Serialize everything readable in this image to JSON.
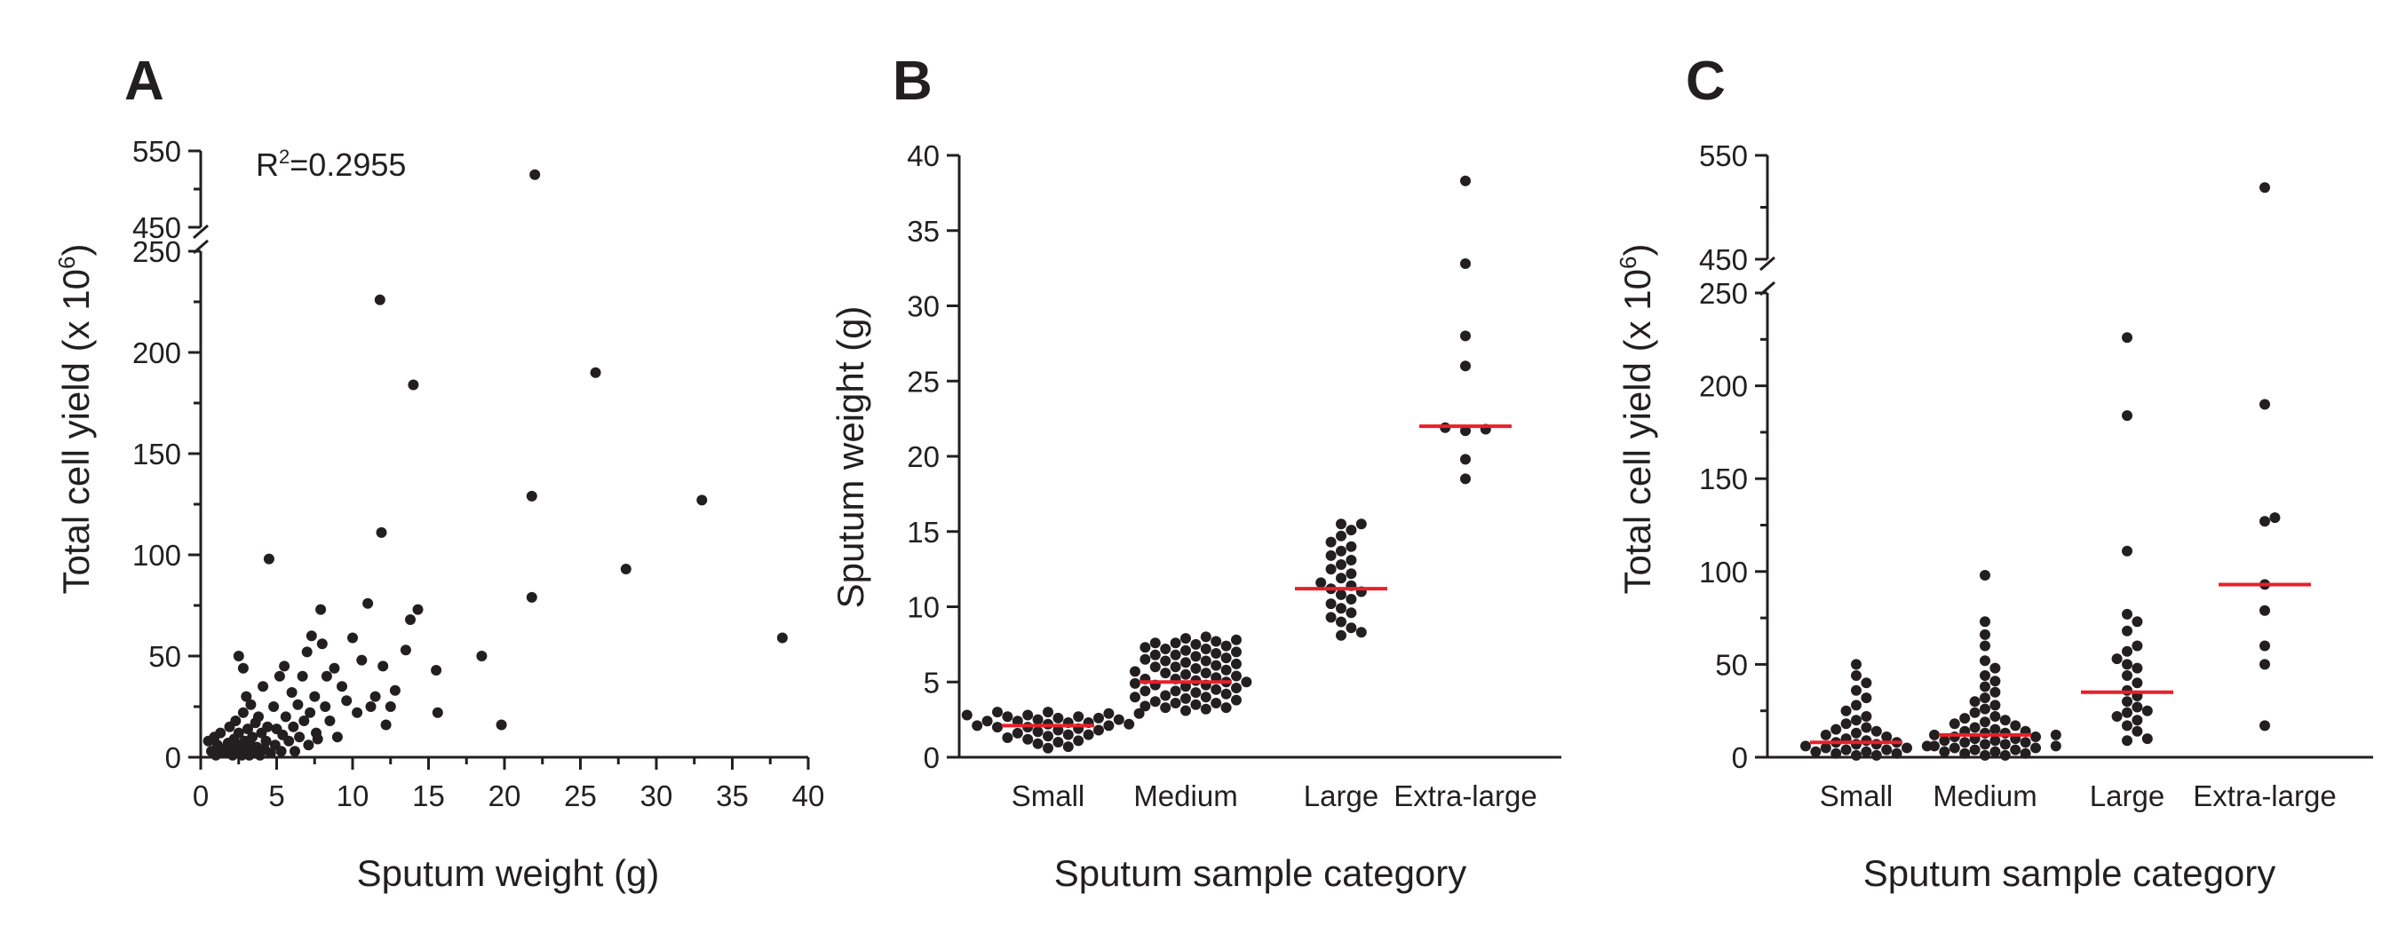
{
  "panels": [
    {
      "letter": "A"
    },
    {
      "letter": "B"
    },
    {
      "letter": "C"
    }
  ],
  "chart_data": [
    {
      "type": "scatter",
      "panel": "A",
      "xlabel": "Sputum weight (g)",
      "ylabel": "Total cell yield (x 10^6)",
      "ylabel_parts": {
        "main": "Total cell yield (x 10",
        "sup": "6",
        "close": ")"
      },
      "annotation": "R²=0.2955",
      "annotation_parts": {
        "pre": "R",
        "sup": "2",
        "post": "=0.2955"
      },
      "xlim": [
        0,
        40
      ],
      "ylim_lower": [
        0,
        250
      ],
      "ylim_upper": [
        450,
        550
      ],
      "broken_axis": true,
      "x_ticks": [
        0,
        5,
        10,
        15,
        20,
        25,
        30,
        35,
        40
      ],
      "y_ticks_lower": [
        0,
        50,
        100,
        150,
        200,
        250
      ],
      "y_ticks_upper": [
        450,
        550
      ],
      "grid": false,
      "points": [
        [
          0.5,
          8
        ],
        [
          0.7,
          3
        ],
        [
          0.9,
          10
        ],
        [
          1.0,
          1
        ],
        [
          1.1,
          6
        ],
        [
          1.3,
          12
        ],
        [
          1.4,
          4
        ],
        [
          1.6,
          2
        ],
        [
          1.8,
          7
        ],
        [
          1.9,
          15
        ],
        [
          2.0,
          5
        ],
        [
          2.1,
          1
        ],
        [
          2.2,
          9
        ],
        [
          2.3,
          18
        ],
        [
          2.4,
          3
        ],
        [
          2.5,
          50
        ],
        [
          2.5,
          12
        ],
        [
          2.6,
          6
        ],
        [
          2.7,
          1
        ],
        [
          2.8,
          44
        ],
        [
          2.8,
          22
        ],
        [
          2.9,
          8
        ],
        [
          3.0,
          30
        ],
        [
          3.0,
          3
        ],
        [
          3.1,
          14
        ],
        [
          3.2,
          1
        ],
        [
          3.3,
          26
        ],
        [
          3.3,
          6
        ],
        [
          3.4,
          10
        ],
        [
          3.5,
          2
        ],
        [
          3.6,
          17
        ],
        [
          3.7,
          5
        ],
        [
          3.8,
          20
        ],
        [
          3.9,
          1
        ],
        [
          4.0,
          12
        ],
        [
          4.1,
          35
        ],
        [
          4.2,
          4
        ],
        [
          4.3,
          8
        ],
        [
          4.4,
          15
        ],
        [
          4.5,
          98
        ],
        [
          4.6,
          2
        ],
        [
          4.8,
          25
        ],
        [
          4.9,
          6
        ],
        [
          5.0,
          14
        ],
        [
          5.2,
          40
        ],
        [
          5.3,
          3
        ],
        [
          5.4,
          11
        ],
        [
          5.5,
          45
        ],
        [
          5.6,
          20
        ],
        [
          5.8,
          8
        ],
        [
          6.0,
          32
        ],
        [
          6.1,
          15
        ],
        [
          6.2,
          3
        ],
        [
          6.4,
          26
        ],
        [
          6.5,
          10
        ],
        [
          6.7,
          40
        ],
        [
          6.8,
          18
        ],
        [
          7.0,
          52
        ],
        [
          7.1,
          6
        ],
        [
          7.2,
          22
        ],
        [
          7.3,
          60
        ],
        [
          7.5,
          30
        ],
        [
          7.6,
          12
        ],
        [
          7.7,
          9
        ],
        [
          7.9,
          73
        ],
        [
          8.0,
          56
        ],
        [
          8.2,
          25
        ],
        [
          8.3,
          40
        ],
        [
          8.5,
          18
        ],
        [
          8.8,
          44
        ],
        [
          9.0,
          10
        ],
        [
          9.3,
          35
        ],
        [
          9.6,
          28
        ],
        [
          10.0,
          59
        ],
        [
          10.3,
          22
        ],
        [
          10.6,
          48
        ],
        [
          11.0,
          76
        ],
        [
          11.2,
          25
        ],
        [
          11.5,
          30
        ],
        [
          11.8,
          226
        ],
        [
          11.9,
          111
        ],
        [
          12.0,
          45
        ],
        [
          12.2,
          16
        ],
        [
          12.5,
          25
        ],
        [
          12.8,
          33
        ],
        [
          13.5,
          53
        ],
        [
          13.8,
          68
        ],
        [
          14.0,
          184
        ],
        [
          14.3,
          73
        ],
        [
          15.5,
          43
        ],
        [
          15.6,
          22
        ],
        [
          18.5,
          50
        ],
        [
          19.8,
          16
        ],
        [
          21.8,
          129
        ],
        [
          21.8,
          79
        ],
        [
          22.0,
          519
        ],
        [
          26.0,
          190
        ],
        [
          28.0,
          93
        ],
        [
          33.0,
          127
        ],
        [
          38.3,
          59
        ]
      ]
    },
    {
      "type": "scatter",
      "panel": "B",
      "xlabel": "Sputum sample category",
      "ylabel": "Sputum weight (g)",
      "categories": [
        "Small",
        "Medium",
        "Large",
        "Extra-large"
      ],
      "ylim": [
        0,
        40
      ],
      "y_ticks": [
        0,
        5,
        10,
        15,
        20,
        25,
        30,
        35,
        40
      ],
      "grid": false,
      "median_color": "#e8202a",
      "medians": [
        2.1,
        5.0,
        11.2,
        22.0
      ],
      "groups": [
        [
          0.6,
          0.7,
          0.9,
          1.0,
          1.1,
          1.2,
          1.3,
          1.4,
          1.5,
          1.5,
          1.6,
          1.7,
          1.8,
          1.8,
          1.9,
          2.0,
          2.0,
          2.1,
          2.1,
          2.2,
          2.2,
          2.3,
          2.3,
          2.4,
          2.4,
          2.5,
          2.5,
          2.6,
          2.6,
          2.7,
          2.7,
          2.8,
          2.8,
          2.9,
          2.9,
          3.0,
          3.0
        ],
        [
          3.1,
          3.2,
          3.3,
          3.4,
          3.5,
          3.6,
          3.7,
          3.8,
          3.9,
          4.0,
          4.1,
          4.2,
          4.3,
          4.4,
          4.5,
          4.6,
          4.7,
          4.8,
          4.9,
          5.0,
          5.0,
          5.1,
          5.2,
          5.3,
          5.4,
          5.5,
          5.6,
          5.7,
          5.8,
          5.9,
          6.0,
          6.1,
          6.2,
          6.3,
          6.4,
          6.5,
          6.6,
          6.7,
          6.8,
          6.9,
          7.0,
          7.1,
          7.2,
          7.3,
          7.4,
          7.5,
          7.6,
          7.7,
          7.8,
          7.9,
          8.0,
          3.3,
          3.6,
          4.0,
          4.4,
          4.8,
          5.2,
          5.6,
          6.0,
          6.4,
          6.8,
          7.2,
          7.6
        ],
        [
          8.1,
          8.3,
          8.6,
          9.0,
          9.3,
          9.6,
          9.9,
          10.2,
          10.5,
          10.8,
          11.0,
          11.2,
          11.4,
          11.6,
          11.9,
          12.2,
          12.5,
          12.8,
          13.1,
          13.4,
          13.7,
          14.0,
          14.3,
          14.7,
          15.1,
          15.5,
          15.5
        ],
        [
          18.5,
          19.8,
          21.7,
          21.8,
          21.9,
          26.0,
          28.0,
          32.8,
          38.3
        ]
      ]
    },
    {
      "type": "scatter",
      "panel": "C",
      "xlabel": "Sputum sample category",
      "ylabel": "Total cell yield (x 10^6)",
      "ylabel_parts": {
        "main": "Total cell yield (x 10",
        "sup": "6",
        "close": ")"
      },
      "categories": [
        "Small",
        "Medium",
        "Large",
        "Extra-large"
      ],
      "ylim_lower": [
        0,
        250
      ],
      "ylim_upper": [
        450,
        550
      ],
      "broken_axis": true,
      "y_ticks_lower": [
        0,
        50,
        100,
        150,
        200,
        250
      ],
      "y_ticks_upper": [
        450,
        550
      ],
      "grid": false,
      "median_color": "#e8202a",
      "medians": [
        8,
        12,
        35,
        93
      ],
      "groups": [
        [
          1,
          1,
          2,
          2,
          3,
          3,
          4,
          4,
          5,
          5,
          6,
          6,
          7,
          7,
          8,
          8,
          9,
          10,
          11,
          12,
          13,
          14,
          15,
          16,
          18,
          20,
          22,
          25,
          28,
          32,
          36,
          40,
          44,
          50
        ],
        [
          1,
          1,
          2,
          2,
          3,
          3,
          4,
          4,
          5,
          5,
          6,
          6,
          7,
          7,
          8,
          8,
          9,
          9,
          10,
          10,
          11,
          11,
          12,
          12,
          13,
          13,
          14,
          14,
          15,
          16,
          17,
          18,
          19,
          20,
          21,
          22,
          24,
          26,
          28,
          30,
          32,
          35,
          38,
          41,
          44,
          48,
          52,
          60,
          66,
          73,
          98
        ],
        [
          9,
          10,
          14,
          17,
          20,
          22,
          24,
          25,
          27,
          30,
          33,
          36,
          40,
          44,
          48,
          50,
          53,
          57,
          60,
          68,
          73,
          77,
          111,
          184,
          226
        ],
        [
          17,
          50,
          60,
          79,
          93,
          127,
          129,
          190,
          519
        ]
      ]
    }
  ]
}
